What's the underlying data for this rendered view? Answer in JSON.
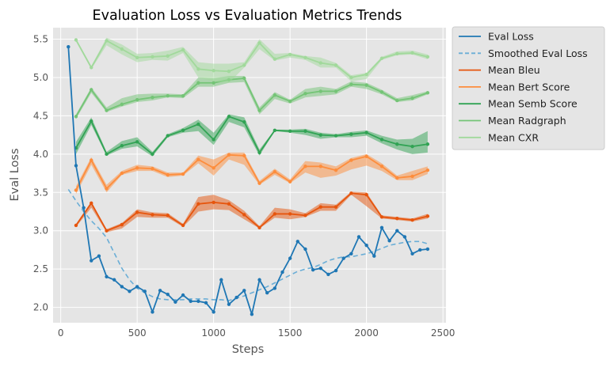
{
  "chart_data": {
    "type": "line",
    "title": "Evaluation Loss vs Evaluation Metrics Trends",
    "xlabel": "Steps",
    "ylabel": "Eval Loss",
    "xlim": [
      -50,
      2520
    ],
    "ylim": [
      1.8,
      5.65
    ],
    "xticks": [
      0,
      500,
      1000,
      1500,
      2000,
      2500
    ],
    "yticks": [
      2.0,
      2.5,
      3.0,
      3.5,
      4.0,
      4.5,
      5.0,
      5.5
    ],
    "grid": true,
    "legend_position": "outside-right-top",
    "series": [
      {
        "name": "Eval Loss",
        "kind": "markers",
        "color": "#1f77b4",
        "x": [
          50,
          100,
          150,
          200,
          250,
          300,
          350,
          400,
          450,
          500,
          550,
          600,
          650,
          700,
          750,
          800,
          850,
          900,
          950,
          1000,
          1050,
          1100,
          1150,
          1200,
          1250,
          1300,
          1350,
          1400,
          1450,
          1500,
          1550,
          1600,
          1650,
          1700,
          1750,
          1800,
          1850,
          1900,
          1950,
          2000,
          2050,
          2100,
          2150,
          2200,
          2250,
          2300,
          2350,
          2400
        ],
        "y": [
          5.4,
          3.85,
          3.3,
          2.61,
          2.67,
          2.4,
          2.36,
          2.27,
          2.21,
          2.27,
          2.21,
          1.94,
          2.22,
          2.17,
          2.07,
          2.16,
          2.08,
          2.08,
          2.06,
          1.94,
          2.36,
          2.04,
          2.13,
          2.22,
          1.91,
          2.36,
          2.19,
          2.25,
          2.46,
          2.64,
          2.86,
          2.76,
          2.49,
          2.51,
          2.43,
          2.48,
          2.64,
          2.7,
          2.92,
          2.81,
          2.67,
          3.04,
          2.87,
          3.0,
          2.92,
          2.7,
          2.75,
          2.76
        ]
      },
      {
        "name": "Smoothed Eval Loss",
        "kind": "dashed",
        "color": "#6baed6",
        "x": [
          50,
          100,
          150,
          200,
          250,
          300,
          350,
          400,
          450,
          500,
          550,
          600,
          650,
          700,
          750,
          800,
          850,
          900,
          950,
          1000,
          1050,
          1100,
          1150,
          1200,
          1250,
          1300,
          1350,
          1400,
          1450,
          1500,
          1550,
          1600,
          1650,
          1700,
          1750,
          1800,
          1850,
          1900,
          1950,
          2000,
          2050,
          2100,
          2150,
          2200,
          2250,
          2300,
          2350,
          2400
        ],
        "y": [
          3.54,
          3.39,
          3.25,
          3.13,
          3.03,
          2.91,
          2.71,
          2.51,
          2.36,
          2.25,
          2.19,
          2.14,
          2.11,
          2.1,
          2.1,
          2.1,
          2.11,
          2.11,
          2.11,
          2.1,
          2.1,
          2.09,
          2.12,
          2.15,
          2.19,
          2.23,
          2.27,
          2.32,
          2.37,
          2.42,
          2.47,
          2.5,
          2.52,
          2.56,
          2.61,
          2.64,
          2.66,
          2.66,
          2.68,
          2.7,
          2.73,
          2.77,
          2.81,
          2.83,
          2.85,
          2.86,
          2.86,
          2.83
        ]
      },
      {
        "name": "Mean Bleu",
        "kind": "band",
        "color": "#e6550d",
        "x": [
          100,
          200,
          300,
          400,
          500,
          600,
          700,
          800,
          900,
          1000,
          1100,
          1200,
          1300,
          1400,
          1500,
          1600,
          1700,
          1800,
          1900,
          2000,
          2100,
          2200,
          2300,
          2400
        ],
        "y": [
          3.07,
          3.36,
          3.0,
          3.08,
          3.24,
          3.21,
          3.2,
          3.07,
          3.35,
          3.37,
          3.35,
          3.21,
          3.04,
          3.22,
          3.22,
          3.2,
          3.31,
          3.31,
          3.49,
          3.47,
          3.18,
          3.16,
          3.14,
          3.19
        ],
        "lower": [
          3.05,
          3.3,
          2.98,
          3.03,
          3.18,
          3.17,
          3.17,
          3.05,
          3.25,
          3.28,
          3.27,
          3.15,
          3.03,
          3.17,
          3.15,
          3.18,
          3.26,
          3.26,
          3.47,
          3.32,
          3.16,
          3.14,
          3.12,
          3.16
        ],
        "upper": [
          3.09,
          3.38,
          3.02,
          3.1,
          3.28,
          3.24,
          3.23,
          3.09,
          3.44,
          3.47,
          3.4,
          3.26,
          3.06,
          3.3,
          3.28,
          3.23,
          3.36,
          3.34,
          3.51,
          3.5,
          3.2,
          3.18,
          3.16,
          3.22
        ]
      },
      {
        "name": "Mean Bert Score",
        "kind": "band",
        "color": "#fd8d3c",
        "x": [
          100,
          200,
          300,
          400,
          500,
          600,
          700,
          800,
          900,
          1000,
          1100,
          1200,
          1300,
          1400,
          1500,
          1600,
          1700,
          1800,
          1900,
          2000,
          2100,
          2200,
          2300,
          2400
        ],
        "y": [
          3.53,
          3.92,
          3.55,
          3.75,
          3.82,
          3.81,
          3.73,
          3.74,
          3.93,
          3.82,
          3.99,
          3.98,
          3.62,
          3.77,
          3.64,
          3.84,
          3.84,
          3.79,
          3.92,
          3.97,
          3.84,
          3.69,
          3.71,
          3.79
        ],
        "lower": [
          3.48,
          3.86,
          3.5,
          3.73,
          3.78,
          3.78,
          3.7,
          3.72,
          3.88,
          3.72,
          3.93,
          3.86,
          3.6,
          3.73,
          3.62,
          3.76,
          3.69,
          3.72,
          3.8,
          3.85,
          3.78,
          3.66,
          3.66,
          3.74
        ],
        "upper": [
          3.58,
          3.96,
          3.6,
          3.78,
          3.86,
          3.84,
          3.76,
          3.76,
          3.98,
          3.93,
          4.02,
          4.02,
          3.65,
          3.81,
          3.67,
          3.91,
          3.89,
          3.84,
          3.95,
          4.0,
          3.88,
          3.72,
          3.78,
          3.84
        ]
      },
      {
        "name": "Mean Semb Score",
        "kind": "band",
        "color": "#31a354",
        "x": [
          100,
          200,
          300,
          400,
          500,
          600,
          700,
          800,
          900,
          1000,
          1100,
          1200,
          1300,
          1400,
          1500,
          1600,
          1700,
          1800,
          1900,
          2000,
          2100,
          2200,
          2300,
          2400
        ],
        "y": [
          4.08,
          4.43,
          4.0,
          4.11,
          4.16,
          4.0,
          4.24,
          4.31,
          4.39,
          4.19,
          4.49,
          4.42,
          4.02,
          4.31,
          4.3,
          4.3,
          4.25,
          4.24,
          4.26,
          4.28,
          4.19,
          4.13,
          4.1,
          4.13
        ],
        "lower": [
          4.0,
          4.38,
          3.98,
          4.07,
          4.1,
          3.97,
          4.22,
          4.28,
          4.3,
          4.12,
          4.42,
          4.35,
          3.98,
          4.3,
          4.28,
          4.25,
          4.2,
          4.22,
          4.22,
          4.24,
          4.14,
          4.06,
          4.0,
          4.02
        ],
        "upper": [
          4.16,
          4.48,
          4.03,
          4.17,
          4.22,
          4.03,
          4.26,
          4.34,
          4.45,
          4.28,
          4.52,
          4.48,
          4.06,
          4.32,
          4.32,
          4.33,
          4.28,
          4.26,
          4.29,
          4.31,
          4.24,
          4.19,
          4.2,
          4.3
        ]
      },
      {
        "name": "Mean Radgraph",
        "kind": "band",
        "color": "#74c476",
        "x": [
          100,
          200,
          300,
          400,
          500,
          600,
          700,
          800,
          900,
          1000,
          1100,
          1200,
          1300,
          1400,
          1500,
          1600,
          1700,
          1800,
          1900,
          2000,
          2100,
          2200,
          2300,
          2400
        ],
        "y": [
          4.49,
          4.84,
          4.57,
          4.65,
          4.71,
          4.74,
          4.76,
          4.76,
          4.93,
          4.93,
          4.97,
          4.99,
          4.57,
          4.77,
          4.69,
          4.79,
          4.82,
          4.82,
          4.91,
          4.9,
          4.81,
          4.7,
          4.73,
          4.8
        ],
        "lower": [
          4.46,
          4.8,
          4.55,
          4.62,
          4.68,
          4.7,
          4.74,
          4.73,
          4.88,
          4.88,
          4.93,
          4.94,
          4.52,
          4.72,
          4.66,
          4.74,
          4.76,
          4.78,
          4.88,
          4.85,
          4.78,
          4.68,
          4.7,
          4.78
        ],
        "upper": [
          4.52,
          4.87,
          4.61,
          4.73,
          4.78,
          4.79,
          4.79,
          4.78,
          5.0,
          4.99,
          5.02,
          5.02,
          4.61,
          4.81,
          4.71,
          4.85,
          4.88,
          4.85,
          4.95,
          4.93,
          4.84,
          4.73,
          4.77,
          4.82
        ]
      },
      {
        "name": "Mean CXR",
        "kind": "band",
        "color": "#a1d99b",
        "x": [
          100,
          200,
          300,
          400,
          500,
          600,
          700,
          800,
          900,
          1000,
          1100,
          1200,
          1300,
          1400,
          1500,
          1600,
          1700,
          1800,
          1900,
          2000,
          2100,
          2200,
          2300,
          2400
        ],
        "y": [
          5.49,
          5.13,
          5.48,
          5.37,
          5.26,
          5.27,
          5.28,
          5.36,
          5.11,
          5.09,
          5.08,
          5.16,
          5.45,
          5.24,
          5.3,
          5.26,
          5.19,
          5.16,
          5.0,
          5.04,
          5.25,
          5.31,
          5.32,
          5.27
        ],
        "lower": [
          5.47,
          5.11,
          5.42,
          5.3,
          5.2,
          5.23,
          5.22,
          5.32,
          5.0,
          4.95,
          4.93,
          5.13,
          5.37,
          5.22,
          5.26,
          5.23,
          5.13,
          5.13,
          4.95,
          4.98,
          5.23,
          5.29,
          5.3,
          5.24
        ],
        "upper": [
          5.51,
          5.15,
          5.52,
          5.43,
          5.31,
          5.32,
          5.35,
          5.4,
          5.2,
          5.18,
          5.18,
          5.2,
          5.5,
          5.31,
          5.32,
          5.28,
          5.26,
          5.19,
          5.03,
          5.06,
          5.27,
          5.34,
          5.35,
          5.3
        ]
      }
    ]
  }
}
